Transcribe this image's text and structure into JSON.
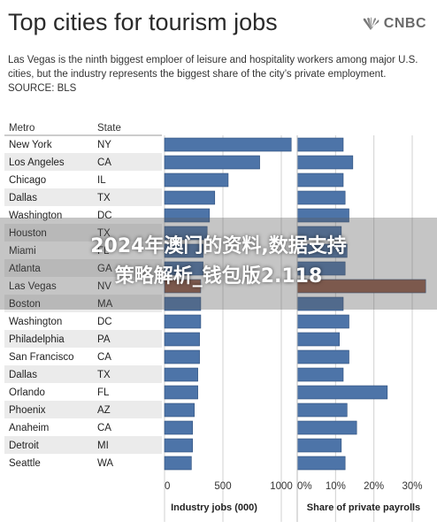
{
  "header": {
    "title": "Top cities for tourism jobs",
    "logo_text": "CNBC",
    "subtitle": "Las Vegas is the ninth biggest emploer of leisure and hospitality workers among major U.S. cities, but the industry represents the biggest share of the city’s private employment. SOURCE: BLS"
  },
  "overlay": {
    "line1": "2024年澳门的资料,数据支持",
    "line2": "策略解析_钱包版2.118"
  },
  "colors": {
    "bar": "#4d74a8",
    "bar_highlight": "#8f5a48",
    "bar_stroke": "#2e4f7c",
    "row_even": "#ffffff",
    "row_odd": "#ebebeb",
    "grid": "#d0d0d0"
  },
  "chart_data": {
    "type": "bar",
    "column_headers": [
      "Metro",
      "State"
    ],
    "metros": [
      "New York",
      "Los Angeles",
      "Chicago",
      "Dallas",
      "Washington",
      "Houston",
      "Miami",
      "Atlanta",
      "Las Vegas",
      "Boston",
      "Washington",
      "Philadelphia",
      "San Francisco",
      "Dallas",
      "Orlando",
      "Phoenix",
      "Anaheim",
      "Detroit",
      "Seattle"
    ],
    "states": [
      "NY",
      "CA",
      "IL",
      "TX",
      "DC",
      "TX",
      "FL",
      "GA",
      "NV",
      "MA",
      "DC",
      "PA",
      "CA",
      "TX",
      "FL",
      "AZ",
      "CA",
      "MI",
      "WA"
    ],
    "highlight_index": 8,
    "panels": [
      {
        "name": "Industry jobs (000)",
        "values": [
          1085,
          815,
          545,
          430,
          385,
          365,
          330,
          330,
          310,
          310,
          310,
          300,
          300,
          285,
          285,
          255,
          240,
          240,
          230
        ],
        "xlim": [
          0,
          1000
        ],
        "ticks": [
          0,
          500,
          1000
        ],
        "tick_labels": [
          "0",
          "500",
          "1000"
        ]
      },
      {
        "name": "Share of private payrolls",
        "values": [
          12.0,
          14.5,
          12.0,
          12.5,
          13.5,
          11.5,
          13.0,
          12.5,
          33.5,
          12.0,
          13.5,
          11.0,
          13.5,
          12.0,
          23.5,
          13.0,
          15.5,
          11.5,
          12.5
        ],
        "xlim": [
          0,
          30
        ],
        "ticks": [
          0,
          10,
          20,
          30
        ],
        "tick_labels": [
          "0%",
          "10%",
          "20%",
          "30%"
        ]
      }
    ],
    "grid": true
  }
}
